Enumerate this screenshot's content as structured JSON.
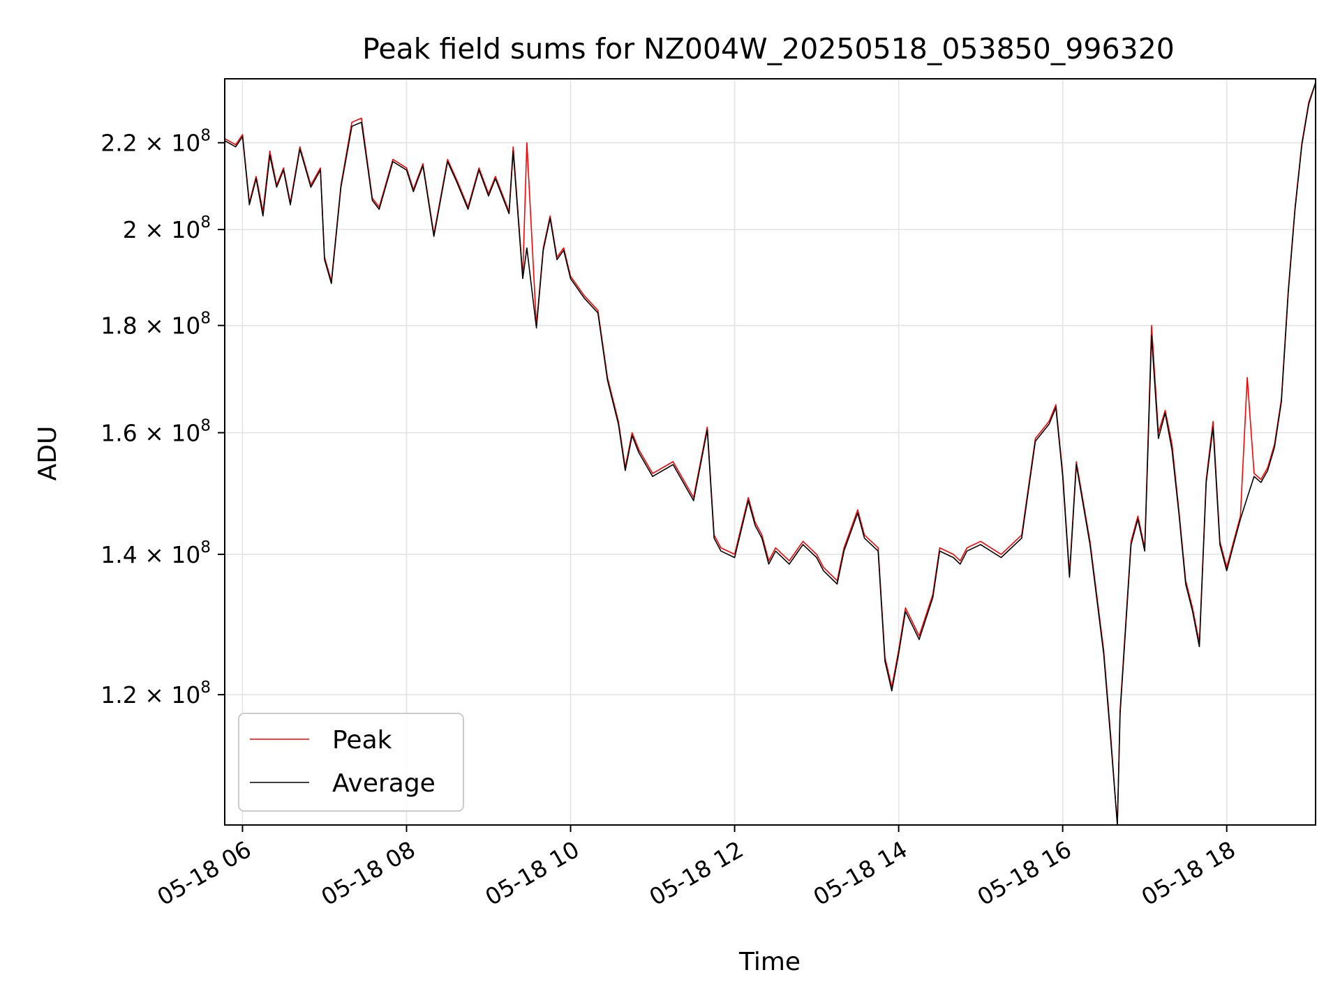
{
  "chart_data": {
    "type": "line",
    "title": "Peak field sums for NZ004W_20250518_053850_996320",
    "xlabel": "Time",
    "ylabel": "ADU",
    "y_scale": "log",
    "grid": true,
    "legend_position": "lower-left",
    "xlim": [
      "2025-05-18 05:47",
      "2025-05-18 19:05"
    ],
    "ylim": [
      104000000,
      236000000
    ],
    "x_ticks": [
      "05-18 06",
      "05-18 08",
      "05-18 10",
      "05-18 12",
      "05-18 14",
      "05-18 16",
      "05-18 18"
    ],
    "x_tick_values": [
      "2025-05-18 06:00",
      "2025-05-18 08:00",
      "2025-05-18 10:00",
      "2025-05-18 12:00",
      "2025-05-18 14:00",
      "2025-05-18 16:00",
      "2025-05-18 18:00"
    ],
    "y_ticks": [
      {
        "value": 120000000,
        "mantissa": "1.2",
        "exponent": "8"
      },
      {
        "value": 140000000,
        "mantissa": "1.4",
        "exponent": "8"
      },
      {
        "value": 160000000,
        "mantissa": "1.6",
        "exponent": "8"
      },
      {
        "value": 180000000,
        "mantissa": "1.8",
        "exponent": "8"
      },
      {
        "value": 200000000,
        "mantissa": "2",
        "exponent": "8"
      },
      {
        "value": 220000000,
        "mantissa": "2.2",
        "exponent": "8"
      }
    ],
    "x": [
      "2025-05-18 05:47",
      "2025-05-18 05:55",
      "2025-05-18 06:00",
      "2025-05-18 06:05",
      "2025-05-18 06:10",
      "2025-05-18 06:15",
      "2025-05-18 06:20",
      "2025-05-18 06:25",
      "2025-05-18 06:30",
      "2025-05-18 06:35",
      "2025-05-18 06:42",
      "2025-05-18 06:50",
      "2025-05-18 06:57",
      "2025-05-18 07:00",
      "2025-05-18 07:05",
      "2025-05-18 07:12",
      "2025-05-18 07:20",
      "2025-05-18 07:27",
      "2025-05-18 07:35",
      "2025-05-18 07:40",
      "2025-05-18 07:50",
      "2025-05-18 08:00",
      "2025-05-18 08:05",
      "2025-05-18 08:12",
      "2025-05-18 08:20",
      "2025-05-18 08:30",
      "2025-05-18 08:37",
      "2025-05-18 08:45",
      "2025-05-18 08:53",
      "2025-05-18 09:00",
      "2025-05-18 09:05",
      "2025-05-18 09:15",
      "2025-05-18 09:18",
      "2025-05-18 09:25",
      "2025-05-18 09:28",
      "2025-05-18 09:35",
      "2025-05-18 09:40",
      "2025-05-18 09:45",
      "2025-05-18 09:50",
      "2025-05-18 09:55",
      "2025-05-18 10:00",
      "2025-05-18 10:10",
      "2025-05-18 10:20",
      "2025-05-18 10:27",
      "2025-05-18 10:35",
      "2025-05-18 10:40",
      "2025-05-18 10:45",
      "2025-05-18 10:50",
      "2025-05-18 11:00",
      "2025-05-18 11:15",
      "2025-05-18 11:30",
      "2025-05-18 11:40",
      "2025-05-18 11:45",
      "2025-05-18 11:50",
      "2025-05-18 12:00",
      "2025-05-18 12:10",
      "2025-05-18 12:15",
      "2025-05-18 12:20",
      "2025-05-18 12:25",
      "2025-05-18 12:30",
      "2025-05-18 12:40",
      "2025-05-18 12:50",
      "2025-05-18 13:00",
      "2025-05-18 13:05",
      "2025-05-18 13:15",
      "2025-05-18 13:20",
      "2025-05-18 13:30",
      "2025-05-18 13:35",
      "2025-05-18 13:45",
      "2025-05-18 13:50",
      "2025-05-18 13:55",
      "2025-05-18 14:00",
      "2025-05-18 14:05",
      "2025-05-18 14:10",
      "2025-05-18 14:15",
      "2025-05-18 14:25",
      "2025-05-18 14:30",
      "2025-05-18 14:40",
      "2025-05-18 14:45",
      "2025-05-18 14:50",
      "2025-05-18 15:00",
      "2025-05-18 15:15",
      "2025-05-18 15:30",
      "2025-05-18 15:40",
      "2025-05-18 15:50",
      "2025-05-18 15:55",
      "2025-05-18 16:00",
      "2025-05-18 16:05",
      "2025-05-18 16:10",
      "2025-05-18 16:20",
      "2025-05-18 16:30",
      "2025-05-18 16:35",
      "2025-05-18 16:40",
      "2025-05-18 16:42",
      "2025-05-18 16:50",
      "2025-05-18 16:55",
      "2025-05-18 17:00",
      "2025-05-18 17:05",
      "2025-05-18 17:10",
      "2025-05-18 17:15",
      "2025-05-18 17:20",
      "2025-05-18 17:25",
      "2025-05-18 17:30",
      "2025-05-18 17:35",
      "2025-05-18 17:40",
      "2025-05-18 17:45",
      "2025-05-18 17:50",
      "2025-05-18 17:55",
      "2025-05-18 18:00",
      "2025-05-18 18:05",
      "2025-05-18 18:10",
      "2025-05-18 18:15",
      "2025-05-18 18:20",
      "2025-05-18 18:25",
      "2025-05-18 18:30",
      "2025-05-18 18:35",
      "2025-05-18 18:40",
      "2025-05-18 18:45",
      "2025-05-18 18:50",
      "2025-05-18 18:55",
      "2025-05-18 19:00",
      "2025-05-18 19:05"
    ],
    "series": [
      {
        "name": "Peak",
        "color": "#ff0000",
        "values": [
          221000000,
          219500000,
          222000000,
          206000000,
          212000000,
          204000000,
          218000000,
          210000000,
          214000000,
          206000000,
          219000000,
          210000000,
          214000000,
          194000000,
          189000000,
          210000000,
          225000000,
          226000000,
          207000000,
          205000000,
          216000000,
          214000000,
          209000000,
          215000000,
          199000000,
          216000000,
          211000000,
          205000000,
          214000000,
          208000000,
          212000000,
          204000000,
          219000000,
          190000000,
          220000000,
          180000000,
          196000000,
          203000000,
          194000000,
          196000000,
          190000000,
          186000000,
          183000000,
          170000000,
          162000000,
          154000000,
          160000000,
          157000000,
          153000000,
          155000000,
          149000000,
          161000000,
          143000000,
          141000000,
          140000000,
          149000000,
          145000000,
          143000000,
          139000000,
          141000000,
          139000000,
          142000000,
          140000000,
          138000000,
          136000000,
          141000000,
          147000000,
          143000000,
          141000000,
          125000000,
          121000000,
          126000000,
          132000000,
          130000000,
          128000000,
          134000000,
          141000000,
          140000000,
          139000000,
          141000000,
          142000000,
          140000000,
          143000000,
          159000000,
          162000000,
          165000000,
          153000000,
          137000000,
          155000000,
          142000000,
          126000000,
          115000000,
          104000000,
          118000000,
          142000000,
          146000000,
          141000000,
          180000000,
          160000000,
          164000000,
          158000000,
          147000000,
          136000000,
          132000000,
          127000000,
          152000000,
          162000000,
          142000000,
          138000000,
          142000000,
          146000000,
          170000000,
          153000000,
          152000000,
          154000000,
          158000000,
          166000000,
          187000000,
          205000000,
          220000000,
          230000000,
          235000000
        ]
      },
      {
        "name": "Average",
        "color": "#000000",
        "values": [
          220500000,
          219000000,
          221500000,
          205500000,
          211500000,
          203000000,
          217000000,
          209500000,
          213500000,
          205500000,
          218500000,
          209500000,
          213500000,
          193500000,
          188500000,
          209500000,
          224000000,
          225000000,
          206500000,
          204500000,
          215500000,
          213500000,
          208500000,
          214500000,
          198500000,
          215500000,
          210500000,
          204500000,
          213500000,
          207500000,
          211500000,
          203500000,
          218000000,
          189500000,
          196000000,
          179500000,
          195500000,
          202500000,
          193500000,
          195500000,
          189500000,
          185500000,
          182500000,
          169500000,
          161500000,
          153500000,
          159500000,
          156500000,
          152500000,
          154500000,
          148500000,
          160500000,
          142500000,
          140500000,
          139500000,
          148500000,
          144500000,
          142500000,
          138500000,
          140500000,
          138500000,
          141500000,
          139500000,
          137500000,
          135500000,
          140500000,
          146500000,
          142500000,
          140500000,
          124500000,
          120500000,
          125500000,
          131500000,
          129500000,
          127500000,
          133500000,
          140500000,
          139500000,
          138500000,
          140500000,
          141500000,
          139500000,
          142500000,
          158500000,
          161500000,
          164500000,
          152500000,
          136500000,
          154500000,
          141500000,
          125500000,
          114500000,
          104000000,
          117500000,
          141500000,
          145500000,
          140500000,
          178000000,
          159000000,
          163500000,
          157000000,
          146500000,
          135500000,
          131500000,
          126500000,
          151500000,
          161000000,
          141500000,
          137500000,
          141500000,
          145500000,
          149000000,
          152500000,
          151500000,
          153500000,
          157500000,
          165500000,
          186500000,
          204500000,
          219500000,
          229500000,
          235000000
        ]
      }
    ]
  }
}
